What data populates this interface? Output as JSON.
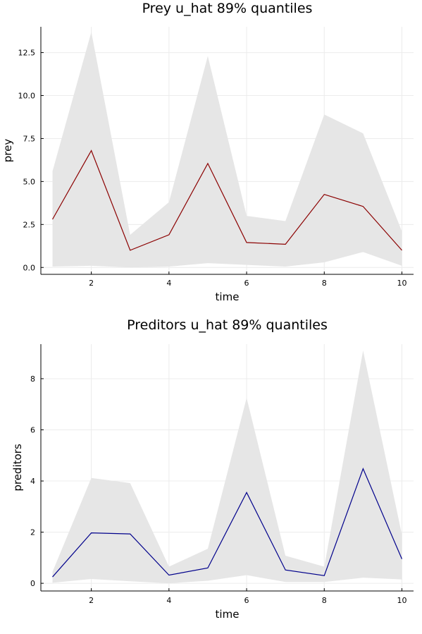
{
  "chart_data": [
    {
      "type": "line",
      "title": "Prey u_hat 89% quantiles",
      "xlabel": "time",
      "ylabel": "prey",
      "xlim": [
        0.7,
        10.3
      ],
      "ylim": [
        -0.4,
        14.0
      ],
      "xticks": [
        2,
        4,
        6,
        8,
        10
      ],
      "xtick_labels": [
        "2",
        "4",
        "6",
        "8",
        "10"
      ],
      "yticks": [
        0,
        2.5,
        5,
        7.5,
        10,
        12.5
      ],
      "ytick_labels": [
        "0.0",
        "2.5",
        "5.0",
        "7.5",
        "10.0",
        "12.5"
      ],
      "grid": true,
      "x": [
        1,
        2,
        3,
        4,
        5,
        6,
        7,
        8,
        9,
        10
      ],
      "series": [
        {
          "values": [
            2.8,
            6.8,
            1.0,
            1.9,
            6.05,
            1.45,
            1.35,
            4.25,
            3.55,
            1.0
          ]
        }
      ],
      "band_upper": [
        5.6,
        13.7,
        1.9,
        3.8,
        12.3,
        3.0,
        2.7,
        8.9,
        7.8,
        2.1
      ],
      "band_lower": [
        0.05,
        0.1,
        0.0,
        0.05,
        0.25,
        0.15,
        0.05,
        0.3,
        0.9,
        0.1
      ],
      "colors": {
        "line": "#8b0000",
        "band": "#e6e6e6"
      }
    },
    {
      "type": "line",
      "title": "Preditors u_hat 89% quantiles",
      "xlabel": "time",
      "ylabel": "preditors",
      "xlim": [
        0.7,
        10.3
      ],
      "ylim": [
        -0.3,
        9.35
      ],
      "xticks": [
        2,
        4,
        6,
        8,
        10
      ],
      "xtick_labels": [
        "2",
        "4",
        "6",
        "8",
        "10"
      ],
      "yticks": [
        0,
        2,
        4,
        6,
        8
      ],
      "ytick_labels": [
        "0",
        "2",
        "4",
        "6",
        "8"
      ],
      "grid": true,
      "x": [
        1,
        2,
        3,
        4,
        5,
        6,
        7,
        8,
        9,
        10
      ],
      "series": [
        {
          "values": [
            0.25,
            1.97,
            1.93,
            0.32,
            0.6,
            3.55,
            0.52,
            0.3,
            4.48,
            0.95
          ]
        }
      ],
      "band_upper": [
        0.45,
        4.12,
        3.92,
        0.65,
        1.35,
        7.25,
        1.08,
        0.65,
        9.1,
        1.9
      ],
      "band_lower": [
        0.02,
        0.17,
        0.08,
        0.0,
        0.1,
        0.32,
        0.05,
        0.05,
        0.22,
        0.15
      ],
      "colors": {
        "line": "#00008b",
        "band": "#e6e6e6"
      }
    }
  ]
}
